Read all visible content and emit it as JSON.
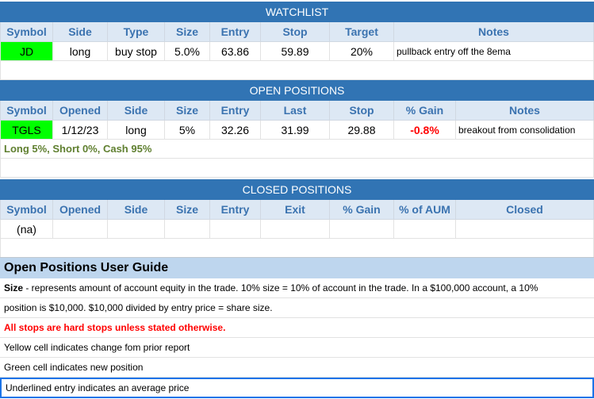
{
  "watchlist": {
    "title": "WATCHLIST",
    "headers": [
      "Symbol",
      "Side",
      "Type",
      "Size",
      "Entry",
      "Stop",
      "Target",
      "Notes"
    ],
    "rows": [
      {
        "symbol": "JD",
        "side": "long",
        "type": "buy stop",
        "size": "5.0%",
        "entry": "63.86",
        "stop": "59.89",
        "target": "20%",
        "notes": "pullback entry off the 8ema"
      }
    ]
  },
  "open_positions": {
    "title": "OPEN POSITIONS",
    "headers": [
      "Symbol",
      "Opened",
      "Side",
      "Size",
      "Entry",
      "Last",
      "Stop",
      "% Gain",
      "Notes"
    ],
    "rows": [
      {
        "symbol": "TGLS",
        "opened": "1/12/23",
        "side": "long",
        "size": "5%",
        "entry": "32.26",
        "last": "31.99",
        "stop": "29.88",
        "gain": "-0.8%",
        "notes": "breakout from consolidation"
      }
    ],
    "summary": "Long 5%, Short 0%, Cash 95%"
  },
  "closed_positions": {
    "title": "CLOSED POSITIONS",
    "headers": [
      "Symbol",
      "Opened",
      "Side",
      "Size",
      "Entry",
      "Exit",
      "% Gain",
      "% of AUM",
      "Closed"
    ],
    "rows": [
      {
        "symbol": "(na)"
      }
    ]
  },
  "guide": {
    "title": "Open Positions User Guide",
    "size_label": "Size",
    "size_text": " - represents amount of account equity in the trade.  10% size = 10% of account in the trade.  In a $100,000 account, a 10%",
    "size_text2": "position is $10,000.  $10,000 divided by entry price = share size.",
    "stops": "All stops are hard stops unless stated otherwise.",
    "yellow": "Yellow cell indicates change fom prior report",
    "green": "Green cell indicates new position",
    "underlined": "Underlined entry indicates an average price"
  },
  "colors": {
    "header_blue": "#3174b4",
    "new_position_green": "#00ff00",
    "loss_red": "#ff0000"
  }
}
